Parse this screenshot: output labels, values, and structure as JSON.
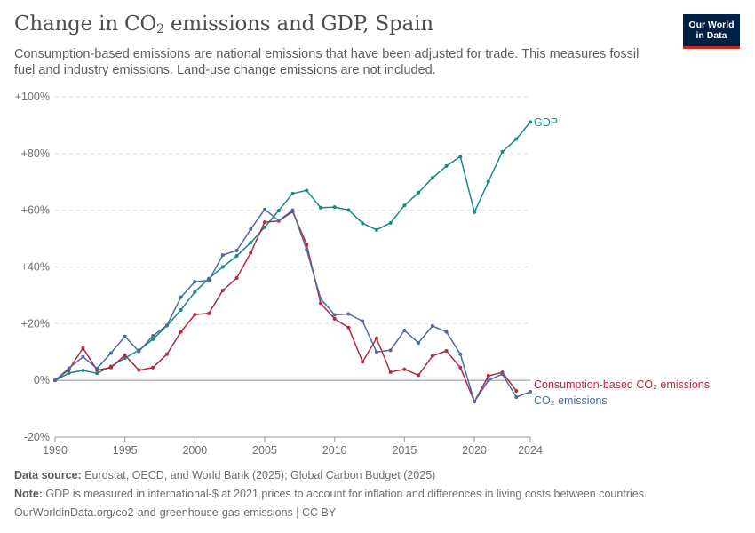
{
  "title": {
    "prefix": "Change in CO",
    "sub": "2",
    "suffix": " emissions and GDP, Spain"
  },
  "subtitle": "Consumption-based emissions are national emissions that have been adjusted for trade. This measures fossil fuel and industry emissions. Land-use change emissions are not included.",
  "logo": {
    "line1": "Our World",
    "line2": "in Data"
  },
  "footer": {
    "source_label": "Data source:",
    "source_text": " Eurostat, OECD, and World Bank (2025); Global Carbon Budget (2025)",
    "note_label": "Note:",
    "note_text": " GDP is measured in international-$ at 2021 prices to account for inflation and differences in living costs between countries.",
    "url": "OurWorldinData.org/co2-and-greenhouse-gas-emissions | CC BY"
  },
  "chart_data": {
    "type": "line",
    "ylim": [
      -20,
      100
    ],
    "xlim": [
      1990,
      2024
    ],
    "yticks": [
      -20,
      0,
      20,
      40,
      60,
      80,
      100
    ],
    "ytick_labels": [
      "-20%",
      "0%",
      "+20%",
      "+40%",
      "+60%",
      "+80%",
      "+100%"
    ],
    "xticks": [
      1990,
      1995,
      2000,
      2005,
      2010,
      2015,
      2020,
      2024
    ],
    "xtick_labels": [
      "1990",
      "1995",
      "2000",
      "2005",
      "2010",
      "2015",
      "2020",
      "2024"
    ],
    "grid": true,
    "series": [
      {
        "name": "GDP",
        "color": "#158a83",
        "x": [
          1990,
          1991,
          1992,
          1993,
          1994,
          1995,
          1996,
          1997,
          1998,
          1999,
          2000,
          2001,
          2002,
          2003,
          2004,
          2005,
          2006,
          2007,
          2008,
          2009,
          2010,
          2011,
          2012,
          2013,
          2014,
          2015,
          2016,
          2017,
          2018,
          2019,
          2020,
          2021,
          2022,
          2023,
          2024
        ],
        "y": [
          0,
          2.6,
          3.5,
          2.5,
          4.9,
          7.9,
          10.6,
          14.5,
          19.3,
          24.8,
          31.2,
          35.9,
          40.0,
          43.9,
          48.6,
          54.0,
          59.9,
          65.9,
          67.0,
          60.9,
          61.1,
          60.1,
          55.4,
          53.1,
          55.5,
          61.7,
          66.2,
          71.4,
          75.6,
          78.9,
          59.3,
          70.1,
          80.6,
          85.1,
          91.1
        ]
      },
      {
        "name": "Consumption-based CO₂ emissions",
        "color": "#b5293f",
        "x": [
          1990,
          1991,
          1992,
          1993,
          1994,
          1995,
          1996,
          1997,
          1998,
          1999,
          2000,
          2001,
          2002,
          2003,
          2004,
          2005,
          2006,
          2007,
          2008,
          2009,
          2010,
          2011,
          2012,
          2013,
          2014,
          2015,
          2016,
          2017,
          2018,
          2019,
          2020,
          2021,
          2022,
          2023
        ],
        "y": [
          0,
          3.8,
          11.4,
          3.6,
          4.5,
          8.9,
          3.6,
          4.5,
          9.2,
          17.1,
          23.2,
          23.6,
          31.7,
          36.1,
          45.0,
          55.8,
          56.2,
          59.5,
          48.0,
          27.2,
          21.7,
          18.6,
          6.5,
          14.8,
          2.9,
          3.9,
          1.8,
          8.6,
          10.4,
          4.5,
          -7.5,
          1.6,
          2.8,
          -3.7
        ]
      },
      {
        "name": "CO₂ emissions",
        "color": "#4c6a9c",
        "x": [
          1990,
          1991,
          1992,
          1993,
          1994,
          1995,
          1996,
          1997,
          1998,
          1999,
          2000,
          2001,
          2002,
          2003,
          2004,
          2005,
          2006,
          2007,
          2008,
          2009,
          2010,
          2011,
          2012,
          2013,
          2014,
          2015,
          2016,
          2017,
          2018,
          2019,
          2020,
          2021,
          2022,
          2023,
          2024
        ],
        "y": [
          0,
          4.3,
          8.3,
          4.2,
          9.6,
          15.5,
          10.2,
          15.7,
          19.4,
          29.3,
          34.8,
          35.2,
          44.2,
          45.8,
          53.3,
          60.3,
          56.4,
          60.0,
          46.1,
          28.8,
          23.1,
          23.4,
          20.9,
          10.0,
          10.6,
          17.6,
          13.2,
          19.2,
          17.1,
          9.2,
          -7.5,
          0.0,
          2.2,
          -5.9,
          -4.0
        ]
      }
    ]
  }
}
